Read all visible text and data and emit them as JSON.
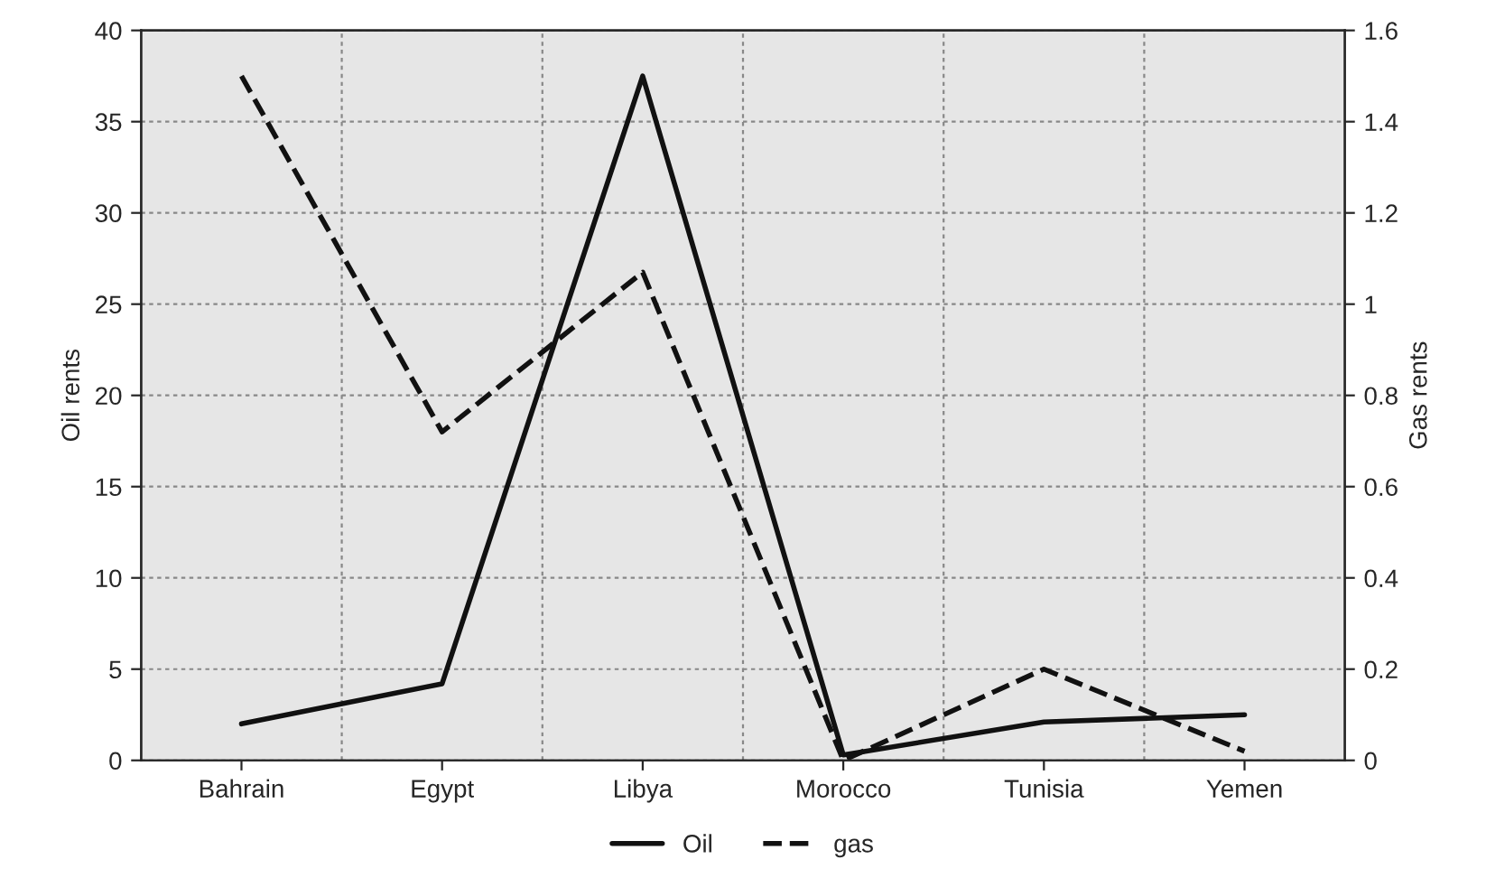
{
  "chart_data": {
    "type": "line",
    "categories": [
      "Bahrain",
      "Egypt",
      "Libya",
      "Morocco",
      "Tunisia",
      "Yemen"
    ],
    "series": [
      {
        "name": "Oil",
        "color": "#111111",
        "line_style": "solid",
        "values": [
          2.0,
          4.2,
          37.5,
          0.3,
          2.1,
          2.5
        ]
      },
      {
        "name": "gas",
        "color": "#111111",
        "line_style": "dashed",
        "axis": "y2",
        "values": [
          1.5,
          0.72,
          1.07,
          0.0,
          0.2,
          0.02
        ]
      }
    ],
    "ylabel": "Oil rents",
    "y2label": "Gas rents",
    "ylim": [
      0,
      40
    ],
    "yticks": [
      0,
      5,
      10,
      15,
      20,
      25,
      30,
      35,
      40
    ],
    "y2lim": [
      0,
      1.6
    ],
    "y2ticks": [
      0,
      0.2,
      0.4,
      0.6,
      0.8,
      1,
      1.2,
      1.4,
      1.6
    ],
    "grid": true,
    "legend": "bottom",
    "marker": "none"
  }
}
